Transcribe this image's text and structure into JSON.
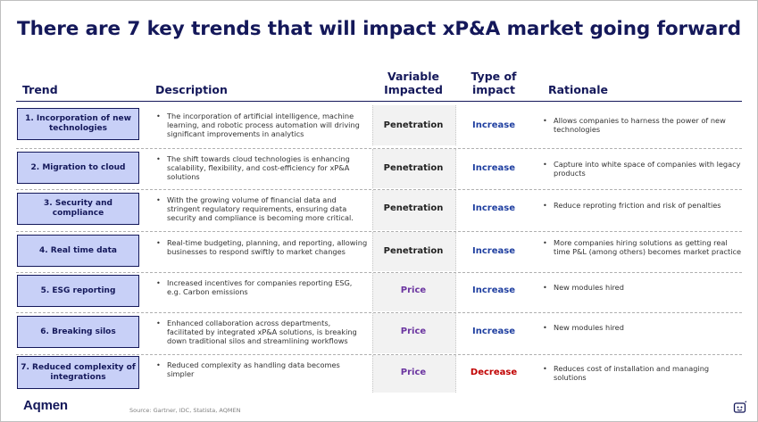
{
  "title": "There are 7 key trends that will impact xP&A market going forward",
  "headers": {
    "trend": "Trend",
    "description": "Description",
    "variable_1": "Variable",
    "variable_2": "Impacted",
    "impact_1": "Type of",
    "impact_2": "impact",
    "rationale": "Rationale"
  },
  "rows": [
    {
      "trend": "1. Incorporation of new technologies",
      "description": "The incorporation of artificial intelligence, machine learning, and robotic process automation will driving significant improvements in analytics",
      "variable": "Penetration",
      "impact": "Increase",
      "rationale": "Allows companies to harness the power of new technologies"
    },
    {
      "trend": "2. Migration to cloud",
      "description": "The shift towards cloud technologies is enhancing scalability, flexibility, and cost-efficiency for xP&A solutions",
      "variable": "Penetration",
      "impact": "Increase",
      "rationale": "Capture into white space of companies with legacy products"
    },
    {
      "trend": "3. Security and compliance",
      "description": "With the growing volume of financial data and stringent regulatory requirements, ensuring data security and compliance is becoming more critical.",
      "variable": "Penetration",
      "impact": "Increase",
      "rationale": "Reduce reproting friction and risk of penalties"
    },
    {
      "trend": "4. Real time data",
      "description": "Real-time budgeting, planning, and reporting, allowing businesses to respond swiftly to market changes",
      "variable": "Penetration",
      "impact": "Increase",
      "rationale": "More companies hiring solutions as getting real time P&L (among others) becomes market practice"
    },
    {
      "trend": "5. ESG reporting",
      "description": "Increased incentives for companies reporting ESG, e.g. Carbon emissions",
      "variable": "Price",
      "impact": "Increase",
      "rationale": "New modules hired"
    },
    {
      "trend": "6. Breaking silos",
      "description": "Enhanced collaboration across departments, facilitated by integrated xP&A solutions, is breaking down traditional silos and streamlining workflows",
      "variable": "Price",
      "impact": "Increase",
      "rationale": "New modules hired"
    },
    {
      "trend": "7. Reduced complexity of integrations",
      "description": "Reduced complexity as handling data becomes simpler",
      "variable": "Price",
      "impact": "Decrease",
      "rationale": "Reduces cost of installation and managing solutions"
    }
  ],
  "footer": {
    "logo": "Aqmen",
    "source": "Source: Gartner, IDC, Statista, AQMEN"
  },
  "colors": {
    "navy": "#14185a",
    "trend_fill": "#c8d0f7",
    "increase": "#1f3fa0",
    "decrease": "#c00000",
    "price": "#6b35a0"
  }
}
